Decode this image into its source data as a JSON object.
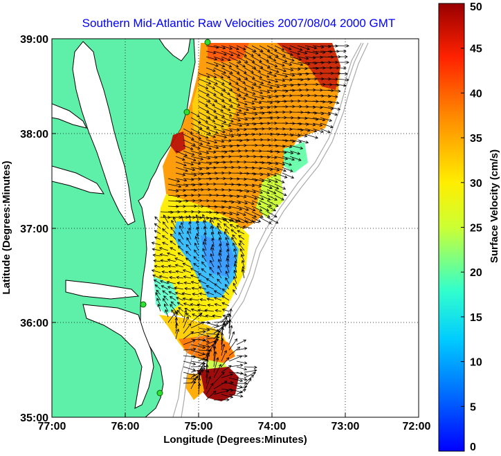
{
  "title": "Southern Mid-Atlantic Raw Velocities 2007/08/04 2000 GMT",
  "axes": {
    "xlabel": "Longitude (Degrees:Minutes)",
    "ylabel": "Latitude (Degrees:Minutes)",
    "x_ticks": [
      "77:00",
      "76:00",
      "75:00",
      "74:00",
      "73:00",
      "72:00"
    ],
    "y_ticks": [
      "39:00",
      "38:00",
      "37:00",
      "36:00",
      "35:00"
    ],
    "lon_range": [
      -77,
      -72
    ],
    "lat_range": [
      35,
      39
    ],
    "grid": "dotted"
  },
  "colorbar": {
    "label": "Surface Velocity (cm/s)",
    "range": [
      0,
      50
    ],
    "ticks": [
      "0",
      "5",
      "10",
      "15",
      "20",
      "25",
      "30",
      "35",
      "40",
      "45",
      "50"
    ],
    "colormap": "jet"
  },
  "colors": {
    "land": "#5ef0a8",
    "water": "#ffffff",
    "title": "#0000ff",
    "arrows": "#000000",
    "bathymetry": "#aaaaaa",
    "stations": "#33dd33"
  },
  "map": {
    "features": [
      "land",
      "coastline",
      "bathymetry-contours",
      "velocity-field",
      "current-vectors",
      "radar-stations"
    ]
  }
}
